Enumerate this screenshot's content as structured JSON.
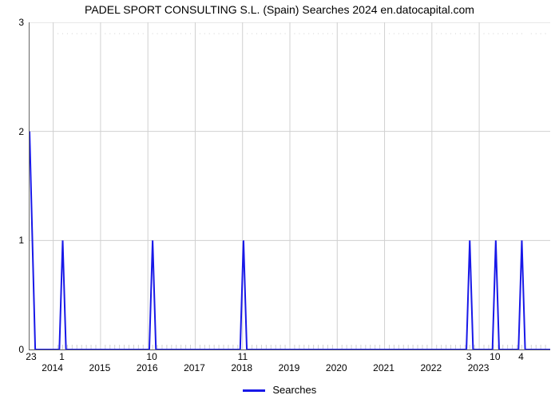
{
  "chart": {
    "type": "line-spike",
    "title": "PADEL SPORT CONSULTING S.L. (Spain) Searches 2024 en.datocapital.com",
    "background_color": "#ffffff",
    "grid_color": "#d0d0d0",
    "line_color": "#1818e8",
    "line_width": 2,
    "title_fontsize": 14,
    "axis_fontsize": 12,
    "y": {
      "min": 0,
      "max": 3,
      "ticks": [
        0,
        1,
        2,
        3
      ]
    },
    "x": {
      "min": 2013.5,
      "max": 2024.5,
      "year_labels": [
        2014,
        2015,
        2016,
        2017,
        2018,
        2019,
        2020,
        2021,
        2022,
        2023
      ],
      "minor_per_year": 10
    },
    "spikes": [
      {
        "x": 2013.55,
        "value": 2.0,
        "label": "23",
        "open_left": true
      },
      {
        "x": 2014.2,
        "value": 1.0,
        "label": "1"
      },
      {
        "x": 2016.1,
        "value": 1.0,
        "label": "10"
      },
      {
        "x": 2018.02,
        "value": 1.0,
        "label": "11"
      },
      {
        "x": 2022.8,
        "value": 1.0,
        "label": "3"
      },
      {
        "x": 2023.35,
        "value": 1.0,
        "label": "10"
      },
      {
        "x": 2023.9,
        "value": 1.0,
        "label": "4"
      }
    ],
    "legend": {
      "label": "Searches",
      "color": "#1818e8"
    }
  }
}
